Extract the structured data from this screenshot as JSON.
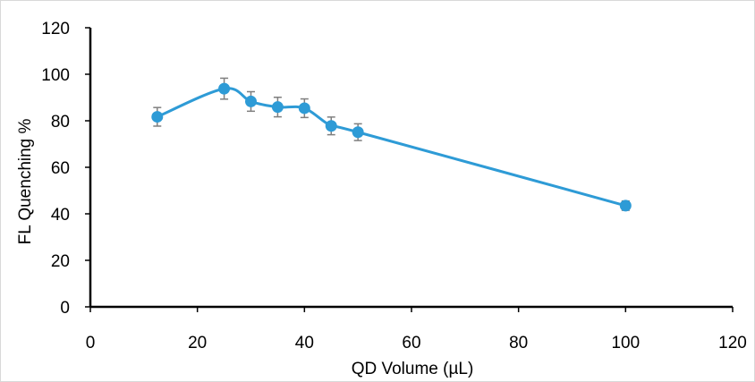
{
  "chart_data": {
    "type": "scatter",
    "xlabel": "QD Volume (µL)",
    "ylabel": "FL Quenching %",
    "xlim": [
      0,
      120
    ],
    "ylim": [
      0,
      120
    ],
    "x_ticks": [
      "0",
      "20",
      "40",
      "60",
      "80",
      "100",
      "120"
    ],
    "y_ticks": [
      "0",
      "20",
      "40",
      "60",
      "80",
      "100",
      "120"
    ],
    "grid": false,
    "legend": "none",
    "line_style": "smoothed",
    "series_color": "#2e9bd6",
    "error_bar_color": "#7f7f7f",
    "series": [
      {
        "points": [
          {
            "x": 12.5,
            "y": 81.7,
            "err": 4.0
          },
          {
            "x": 25,
            "y": 93.8,
            "err": 4.5
          },
          {
            "x": 30,
            "y": 88.3,
            "err": 4.2
          },
          {
            "x": 35,
            "y": 85.9,
            "err": 4.2
          },
          {
            "x": 40,
            "y": 85.4,
            "err": 4.0
          },
          {
            "x": 45,
            "y": 77.8,
            "err": 3.8
          },
          {
            "x": 50,
            "y": 75.1,
            "err": 3.6
          },
          {
            "x": 100,
            "y": 43.5,
            "err": 2.0
          }
        ]
      }
    ]
  }
}
